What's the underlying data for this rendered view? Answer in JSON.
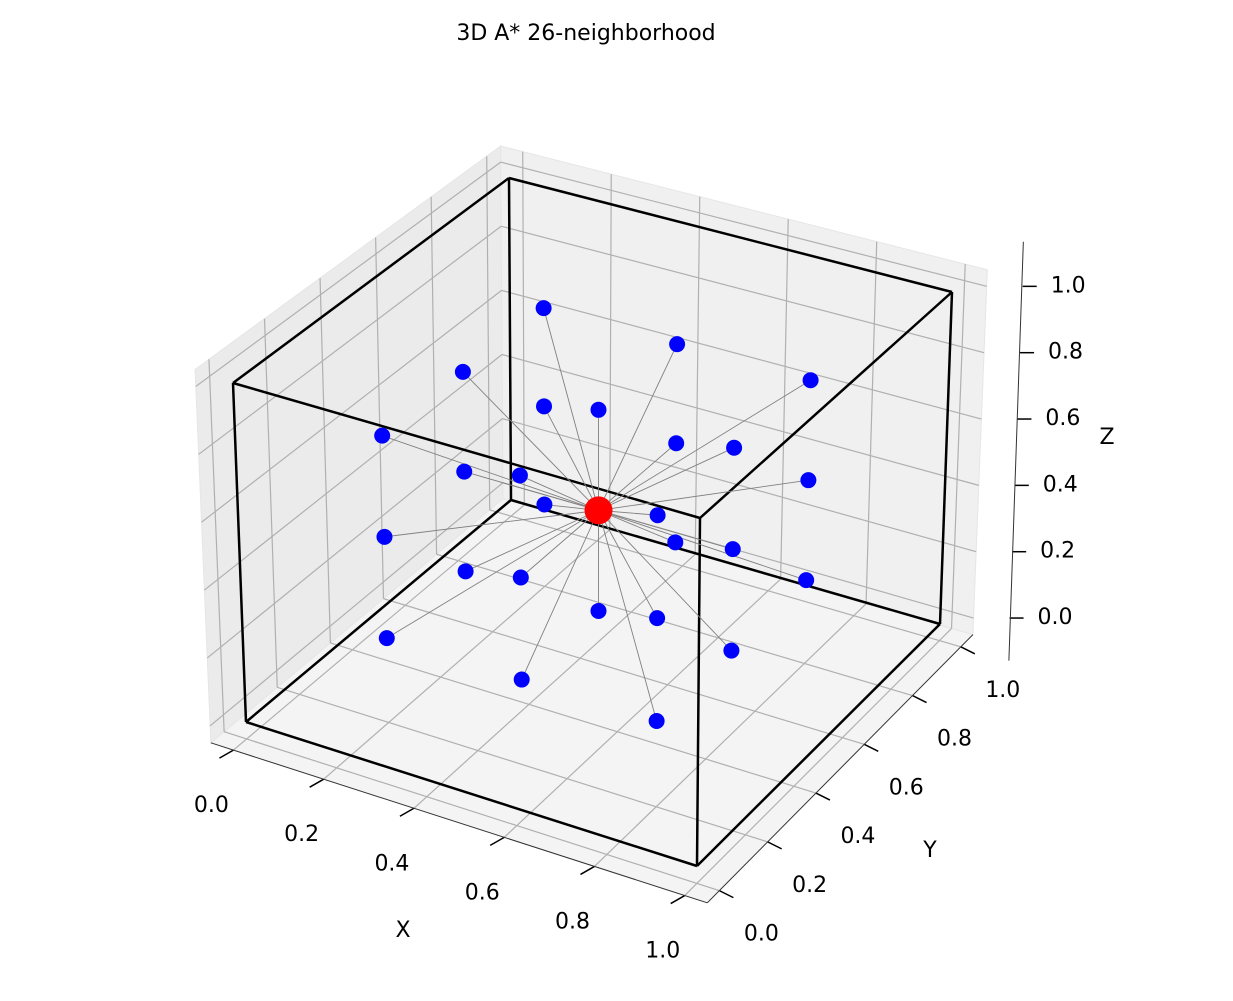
{
  "chart_data": {
    "type": "scatter3d",
    "title": "3D A* 26-neighborhood",
    "xlabel": "X",
    "ylabel": "Y",
    "zlabel": "Z",
    "xlim": [
      -0.05,
      1.05
    ],
    "ylim": [
      -0.05,
      1.05
    ],
    "zlim": [
      -0.05,
      1.05
    ],
    "xticks": [
      {
        "value": 0,
        "label": "0.0"
      },
      0.2,
      0.4,
      0.6,
      0.8,
      {
        "value": 1,
        "label": "1.0"
      }
    ],
    "yticks": [
      {
        "value": 0,
        "label": "0.0"
      },
      0.2,
      0.4,
      0.6,
      0.8,
      {
        "value": 1,
        "label": "1.0"
      }
    ],
    "zticks": [
      {
        "value": 0,
        "label": "0.0"
      },
      0.2,
      0.4,
      0.6,
      0.8,
      {
        "value": 1,
        "label": "1.0"
      }
    ],
    "grid": true,
    "box": [
      0,
      1
    ],
    "box_color": "#000000",
    "center": {
      "x": 0.5,
      "y": 0.5,
      "z": 0.5,
      "color": "#ff0000"
    },
    "points": {
      "color": "#0000ff",
      "line_color": "#808080",
      "x": [
        0.2,
        0.2,
        0.2,
        0.2,
        0.2,
        0.2,
        0.2,
        0.2,
        0.2,
        0.5,
        0.5,
        0.5,
        0.5,
        0.5,
        0.5,
        0.5,
        0.5,
        0.8,
        0.8,
        0.8,
        0.8,
        0.8,
        0.8,
        0.8,
        0.8,
        0.8
      ],
      "y": [
        0.2,
        0.2,
        0.2,
        0.5,
        0.5,
        0.5,
        0.8,
        0.8,
        0.8,
        0.2,
        0.2,
        0.2,
        0.5,
        0.5,
        0.8,
        0.8,
        0.8,
        0.2,
        0.2,
        0.2,
        0.5,
        0.5,
        0.5,
        0.8,
        0.8,
        0.8
      ],
      "z": [
        0.2,
        0.5,
        0.8,
        0.2,
        0.5,
        0.8,
        0.2,
        0.5,
        0.8,
        0.2,
        0.5,
        0.8,
        0.2,
        0.8,
        0.2,
        0.5,
        0.8,
        0.2,
        0.5,
        0.8,
        0.2,
        0.5,
        0.8,
        0.2,
        0.5,
        0.8
      ]
    }
  }
}
